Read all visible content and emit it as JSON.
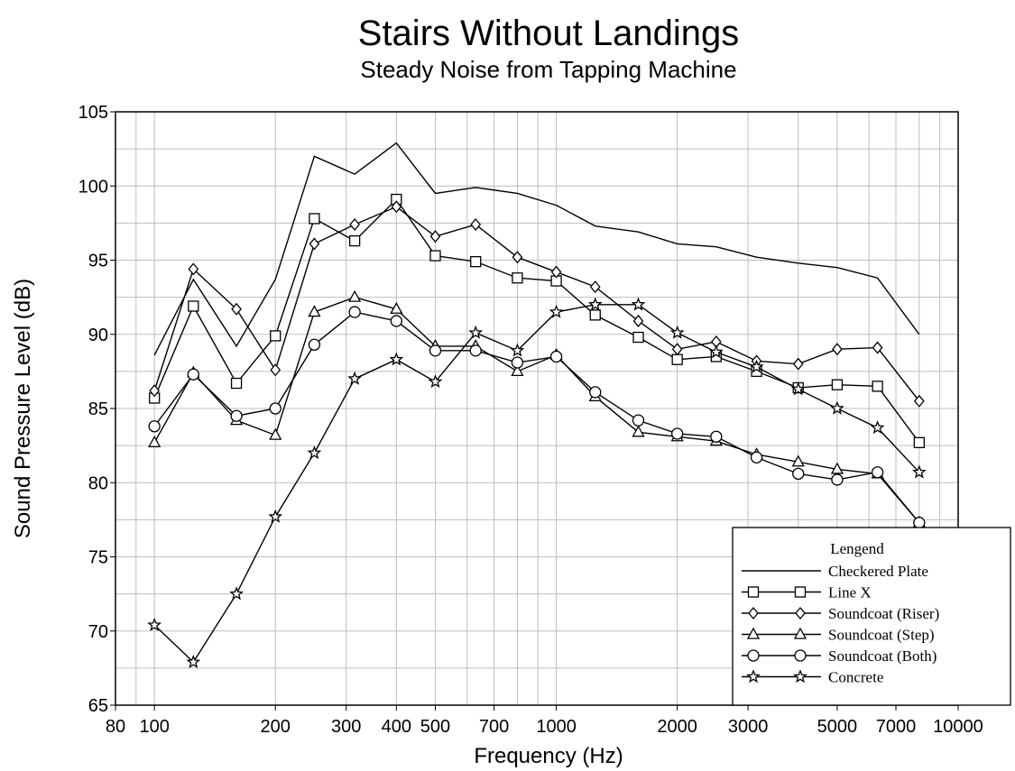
{
  "chart_data": {
    "type": "line",
    "title": "Stairs Without Landings",
    "subtitle": "Steady Noise from Tapping Machine",
    "xlabel": "Frequency (Hz)",
    "ylabel": "Sound Pressure Level (dB)",
    "x_scale": "log",
    "xlim": [
      80,
      10000
    ],
    "ylim": [
      65,
      105
    ],
    "x_ticks": [
      80,
      100,
      200,
      300,
      400,
      500,
      700,
      1000,
      2000,
      3000,
      5000,
      7000,
      10000
    ],
    "x_tick_labels": [
      "80",
      "100",
      "200",
      "300",
      "400",
      "500",
      "700",
      "1000",
      "2000",
      "3000",
      "5000",
      "7000",
      "10000"
    ],
    "y_ticks": [
      65,
      70,
      75,
      80,
      85,
      90,
      95,
      100,
      105
    ],
    "y_tick_labels": [
      "65",
      "70",
      "75",
      "80",
      "85",
      "90",
      "95",
      "100",
      "105"
    ],
    "grid": true,
    "legend_title": "Lengend",
    "legend_position": "bottom-right",
    "x": [
      100,
      125,
      160,
      200,
      250,
      315,
      400,
      500,
      630,
      800,
      1000,
      1250,
      1600,
      2000,
      2500,
      3150,
      4000,
      5000,
      6300,
      8000
    ],
    "series": [
      {
        "name": "Checkered Plate",
        "marker": "none",
        "values": [
          88.6,
          93.7,
          89.2,
          93.7,
          102.0,
          100.8,
          102.9,
          99.5,
          99.9,
          99.5,
          98.7,
          97.3,
          96.9,
          96.1,
          95.9,
          95.2,
          94.8,
          94.5,
          93.8,
          90.0
        ]
      },
      {
        "name": "Line X",
        "marker": "square",
        "values": [
          85.7,
          91.9,
          86.7,
          89.9,
          97.8,
          96.3,
          99.1,
          95.3,
          94.9,
          93.8,
          93.6,
          91.3,
          89.8,
          88.3,
          88.5,
          87.5,
          86.4,
          86.6,
          86.5,
          82.7
        ]
      },
      {
        "name": "Soundcoat (Riser)",
        "marker": "diamond",
        "values": [
          86.2,
          94.4,
          91.7,
          87.6,
          96.1,
          97.4,
          98.6,
          96.6,
          97.4,
          95.2,
          94.2,
          93.2,
          90.9,
          89.0,
          89.5,
          88.2,
          88.0,
          89.0,
          89.1,
          85.5
        ]
      },
      {
        "name": "Soundcoat (Step)",
        "marker": "triangle",
        "values": [
          82.7,
          87.4,
          84.2,
          83.2,
          91.5,
          92.5,
          91.7,
          89.2,
          89.2,
          87.5,
          88.6,
          85.8,
          83.4,
          83.1,
          82.8,
          81.9,
          81.4,
          80.9,
          80.6,
          77.3
        ]
      },
      {
        "name": "Soundcoat (Both)",
        "marker": "circle",
        "values": [
          83.8,
          87.3,
          84.5,
          85.0,
          89.3,
          91.5,
          90.9,
          88.9,
          88.9,
          88.1,
          88.5,
          86.1,
          84.2,
          83.3,
          83.1,
          81.7,
          80.6,
          80.2,
          80.7,
          77.3
        ]
      },
      {
        "name": "Concrete",
        "marker": "star",
        "values": [
          70.4,
          67.9,
          72.5,
          77.7,
          82.0,
          87.0,
          88.3,
          86.8,
          90.1,
          88.9,
          91.5,
          92.0,
          92.0,
          90.1,
          88.8,
          87.8,
          86.3,
          85.0,
          83.7,
          80.7
        ]
      }
    ]
  }
}
